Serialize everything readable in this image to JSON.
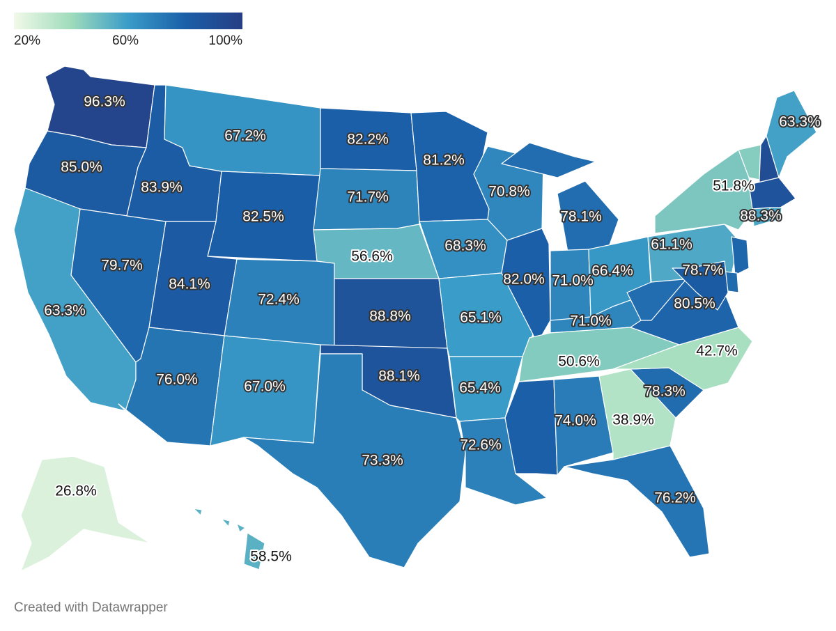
{
  "legend": {
    "min_label": "20%",
    "mid_label": "60%",
    "max_label": "100%",
    "colors": [
      "#f2f9e8",
      "#9fdcbc",
      "#3a9cc8",
      "#1a5fa8",
      "#273e84"
    ]
  },
  "credit": "Created with Datawrapper",
  "chart_data": {
    "type": "choropleth",
    "region": "United States",
    "scale": {
      "min": 20,
      "mid": 60,
      "max": 100,
      "unit": "%"
    },
    "states": [
      {
        "code": "WA",
        "value": 96.3,
        "label": "96.3%"
      },
      {
        "code": "OR",
        "value": 85.0,
        "label": "85.0%"
      },
      {
        "code": "CA",
        "value": 63.3,
        "label": "63.3%"
      },
      {
        "code": "NV",
        "value": 79.7,
        "label": "79.7%"
      },
      {
        "code": "ID",
        "value": 83.9,
        "label": "83.9%"
      },
      {
        "code": "MT",
        "value": 67.2,
        "label": "67.2%"
      },
      {
        "code": "WY",
        "value": 82.5,
        "label": "82.5%"
      },
      {
        "code": "UT",
        "value": 84.1,
        "label": "84.1%"
      },
      {
        "code": "AZ",
        "value": 76.0,
        "label": "76.0%"
      },
      {
        "code": "CO",
        "value": 72.4,
        "label": "72.4%"
      },
      {
        "code": "NM",
        "value": 67.0,
        "label": "67.0%"
      },
      {
        "code": "ND",
        "value": 82.2,
        "label": "82.2%"
      },
      {
        "code": "SD",
        "value": 71.7,
        "label": "71.7%"
      },
      {
        "code": "NE",
        "value": 56.6,
        "label": "56.6%"
      },
      {
        "code": "KS",
        "value": 88.8,
        "label": "88.8%"
      },
      {
        "code": "OK",
        "value": 88.1,
        "label": "88.1%"
      },
      {
        "code": "TX",
        "value": 73.3,
        "label": "73.3%"
      },
      {
        "code": "MN",
        "value": 81.2,
        "label": "81.2%"
      },
      {
        "code": "IA",
        "value": 68.3,
        "label": "68.3%"
      },
      {
        "code": "MO",
        "value": 65.1,
        "label": "65.1%"
      },
      {
        "code": "AR",
        "value": 65.4,
        "label": "65.4%"
      },
      {
        "code": "LA",
        "value": 72.6,
        "label": "72.6%"
      },
      {
        "code": "WI",
        "value": 70.8,
        "label": "70.8%"
      },
      {
        "code": "IL",
        "value": 82.0,
        "label": "82.0%"
      },
      {
        "code": "MI",
        "value": 78.1,
        "label": "78.1%"
      },
      {
        "code": "IN",
        "value": 71.0,
        "label": "71.0%"
      },
      {
        "code": "OH",
        "value": 66.4,
        "label": "66.4%"
      },
      {
        "code": "KY",
        "value": 71.0,
        "label": "71.0%"
      },
      {
        "code": "TN",
        "value": 50.6,
        "label": "50.6%"
      },
      {
        "code": "MS",
        "value": 82.0,
        "label": ""
      },
      {
        "code": "AL",
        "value": 74.0,
        "label": "74.0%"
      },
      {
        "code": "GA",
        "value": 38.9,
        "label": "38.9%"
      },
      {
        "code": "FL",
        "value": 76.2,
        "label": "76.2%"
      },
      {
        "code": "SC",
        "value": 78.3,
        "label": "78.3%"
      },
      {
        "code": "NC",
        "value": 42.7,
        "label": "42.7%"
      },
      {
        "code": "VA",
        "value": 80.5,
        "label": "80.5%"
      },
      {
        "code": "WV",
        "value": 78.0,
        "label": ""
      },
      {
        "code": "PA",
        "value": 61.1,
        "label": "61.1%"
      },
      {
        "code": "NY",
        "value": 51.8,
        "label": "51.8%"
      },
      {
        "code": "VT",
        "value": 50.0,
        "label": ""
      },
      {
        "code": "NH",
        "value": 92.0,
        "label": ""
      },
      {
        "code": "ME",
        "value": 63.3,
        "label": "63.3%"
      },
      {
        "code": "MA",
        "value": 88.3,
        "label": "88.3%"
      },
      {
        "code": "CT",
        "value": 62.0,
        "label": ""
      },
      {
        "code": "RI",
        "value": 62.0,
        "label": ""
      },
      {
        "code": "NJ",
        "value": 80.0,
        "label": ""
      },
      {
        "code": "DE",
        "value": 78.7,
        "label": "78.7%"
      },
      {
        "code": "MD",
        "value": 84.0,
        "label": ""
      },
      {
        "code": "AK",
        "value": 26.8,
        "label": "26.8%"
      },
      {
        "code": "HI",
        "value": 58.5,
        "label": "58.5%"
      }
    ]
  }
}
